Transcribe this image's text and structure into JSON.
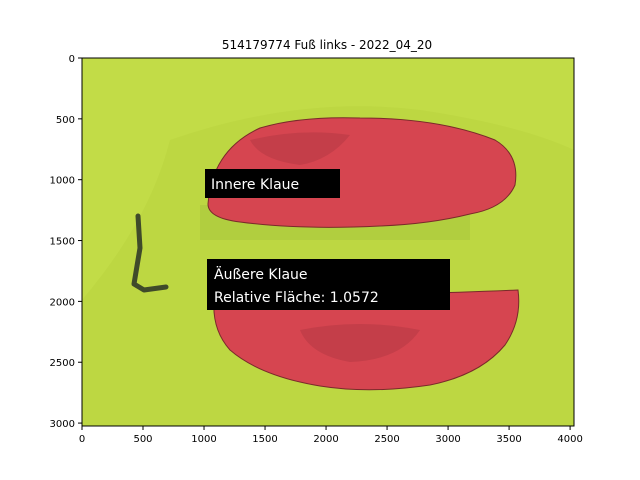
{
  "chart_data": {
    "type": "image",
    "title": "514179774 Fuß links - 2022_04_20",
    "xlim": [
      0,
      4032
    ],
    "ylim": [
      3024,
      0
    ],
    "xticks": [
      0,
      500,
      1000,
      1500,
      2000,
      2500,
      3000,
      3500,
      4000
    ],
    "yticks": [
      0,
      500,
      1000,
      1500,
      2000,
      2500,
      3000
    ],
    "xtick_labels": [
      "0",
      "500",
      "1000",
      "1500",
      "2000",
      "2500",
      "3000",
      "3500",
      "4000"
    ],
    "ytick_labels": [
      "0",
      "500",
      "1000",
      "1500",
      "2000",
      "2500",
      "3000"
    ],
    "grid": false,
    "annotations": [
      {
        "name": "innere-klaue-annotation",
        "x": 1050,
        "y": 1020,
        "lines": [
          "Innere Klaue"
        ]
      },
      {
        "name": "aeussere-klaue-annotation",
        "x": 1070,
        "y": 1770,
        "lines": [
          "Äußere Klaue",
          "Relative Fläche: 1.0572"
        ]
      }
    ],
    "colors": {
      "background_fabric": "#c2dc47",
      "claw_overlay": "#d64550",
      "annotation_box": "#000000",
      "annotation_text": "#ffffff"
    }
  }
}
